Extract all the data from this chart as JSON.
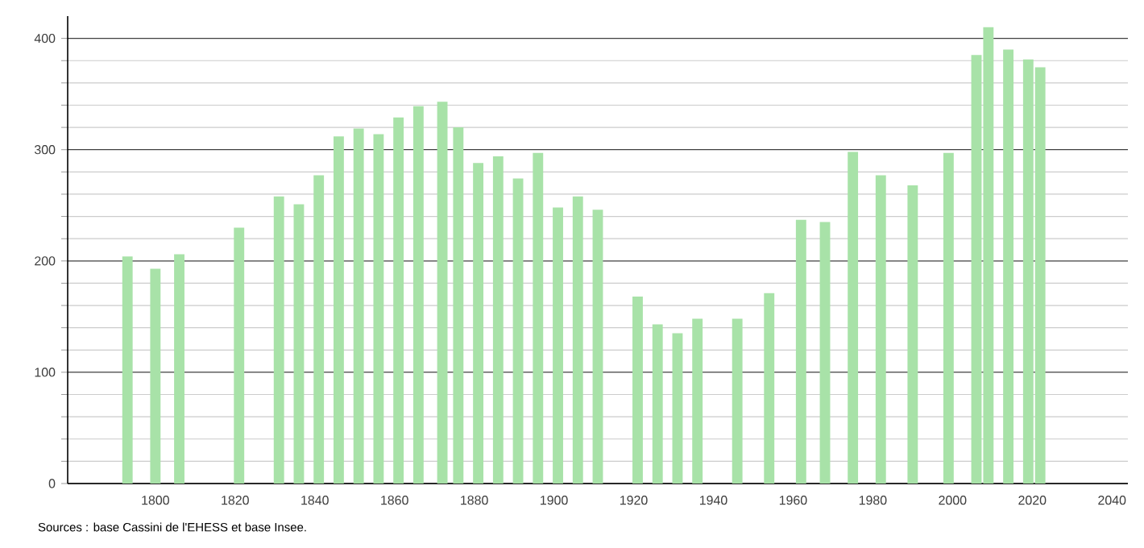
{
  "chart_data": {
    "type": "bar",
    "x": [
      1793,
      1800,
      1806,
      1821,
      1831,
      1836,
      1841,
      1846,
      1851,
      1856,
      1861,
      1866,
      1872,
      1876,
      1881,
      1886,
      1891,
      1896,
      1901,
      1906,
      1911,
      1921,
      1926,
      1931,
      1936,
      1946,
      1954,
      1962,
      1968,
      1975,
      1982,
      1990,
      1999,
      2006,
      2009,
      2014,
      2019,
      2022
    ],
    "values": [
      204,
      193,
      206,
      230,
      258,
      251,
      277,
      312,
      319,
      314,
      329,
      339,
      343,
      320,
      288,
      294,
      274,
      297,
      248,
      258,
      246,
      168,
      143,
      135,
      148,
      148,
      171,
      237,
      235,
      298,
      277,
      268,
      297,
      385,
      410,
      390,
      381,
      374
    ],
    "color": "#a8e2a8",
    "xlim": [
      1778,
      2044
    ],
    "xticks": [
      1800,
      1820,
      1840,
      1860,
      1880,
      1900,
      1920,
      1940,
      1960,
      1980,
      2000,
      2020,
      2040
    ],
    "ylim": [
      0,
      420
    ],
    "yticks": [
      0,
      100,
      200,
      300,
      400
    ],
    "grid": "y",
    "annotations": [
      "Sources : base Cassini de l'EHESS et base Insee."
    ]
  }
}
